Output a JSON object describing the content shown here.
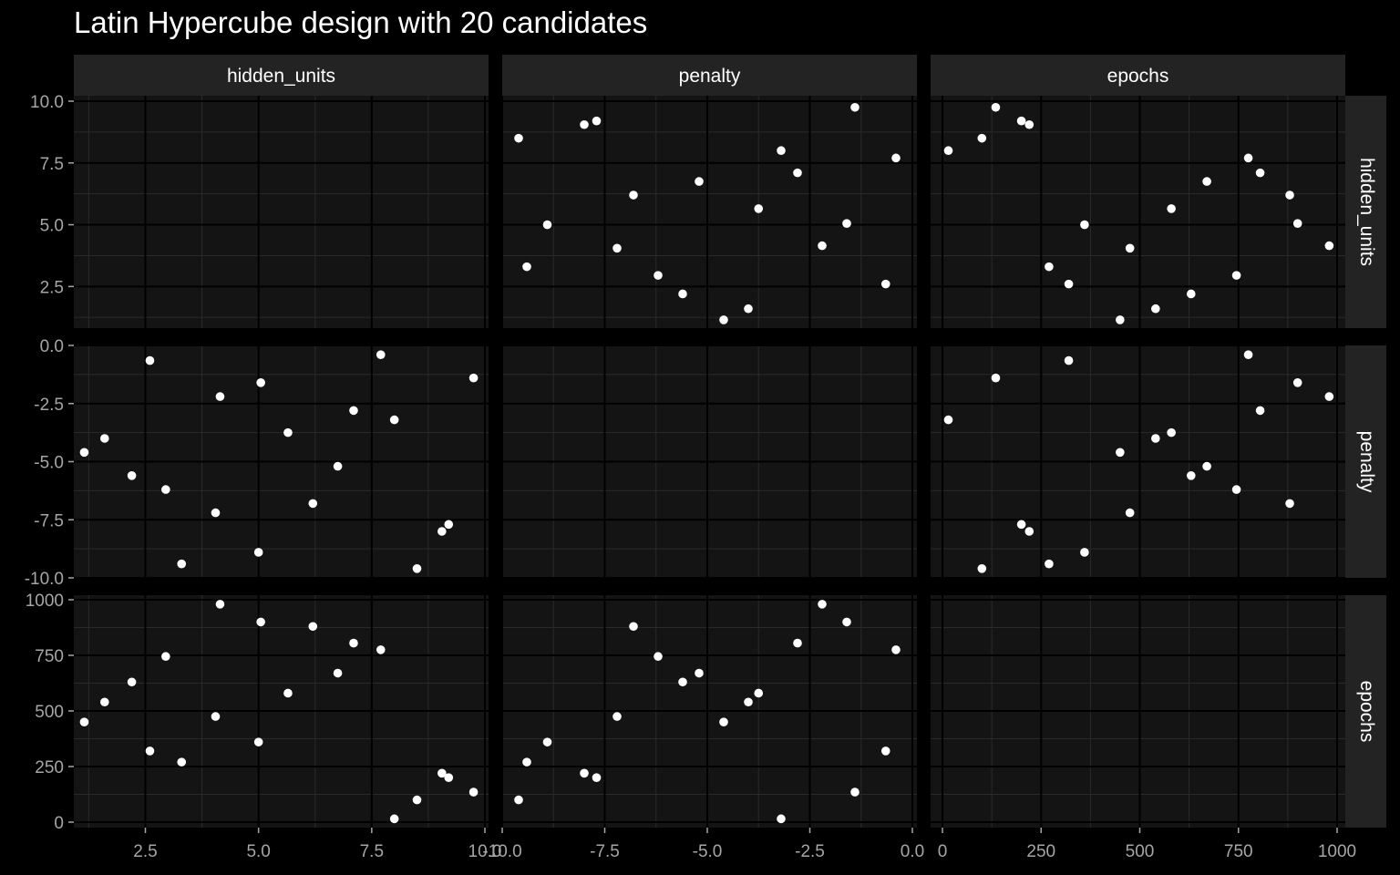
{
  "chart_data": {
    "type": "scatter",
    "title": "Latin Hypercube design with 20 candidates",
    "layout": "scatterplot-matrix",
    "variables": [
      "hidden_units",
      "penalty",
      "epochs"
    ],
    "axes": {
      "hidden_units": {
        "lim": [
          1.0,
          10.0
        ],
        "ticks": [
          2.5,
          5.0,
          7.5,
          10.0
        ],
        "x_tick_labels": [
          "2.5",
          "5.0",
          "7.5",
          "10.0"
        ],
        "y_tick_labels": [
          "2.5",
          "5.0",
          "7.5",
          "10.0"
        ]
      },
      "penalty": {
        "lim": [
          -10.0,
          0.0
        ],
        "ticks": [
          -10.0,
          -7.5,
          -5.0,
          -2.5,
          0.0
        ],
        "x_tick_labels": [
          "-10.0",
          "-7.5",
          "-5.0",
          "-2.5",
          "0.0"
        ],
        "y_tick_labels": [
          "-10.0",
          "-7.5",
          "-5.0",
          "-2.5",
          "0.0"
        ]
      },
      "epochs": {
        "lim": [
          0,
          1000
        ],
        "ticks": [
          0,
          250,
          500,
          750,
          1000
        ],
        "x_tick_labels": [
          "0",
          "250",
          "500",
          "750",
          "1000"
        ],
        "y_tick_labels": [
          "0",
          "250",
          "500",
          "750",
          "1000"
        ]
      }
    },
    "points": [
      {
        "hidden_units": 8.5,
        "penalty": -9.6,
        "epochs": 100
      },
      {
        "hidden_units": 3.3,
        "penalty": -9.4,
        "epochs": 270
      },
      {
        "hidden_units": 5.0,
        "penalty": -8.9,
        "epochs": 360
      },
      {
        "hidden_units": 9.05,
        "penalty": -8.0,
        "epochs": 220
      },
      {
        "hidden_units": 9.2,
        "penalty": -7.7,
        "epochs": 200
      },
      {
        "hidden_units": 4.05,
        "penalty": -7.2,
        "epochs": 475
      },
      {
        "hidden_units": 6.2,
        "penalty": -6.8,
        "epochs": 880
      },
      {
        "hidden_units": 2.95,
        "penalty": -6.2,
        "epochs": 745
      },
      {
        "hidden_units": 2.2,
        "penalty": -5.6,
        "epochs": 630
      },
      {
        "hidden_units": 6.75,
        "penalty": -5.2,
        "epochs": 670
      },
      {
        "hidden_units": 1.15,
        "penalty": -4.6,
        "epochs": 450
      },
      {
        "hidden_units": 1.6,
        "penalty": -4.0,
        "epochs": 540
      },
      {
        "hidden_units": 5.65,
        "penalty": -3.75,
        "epochs": 580
      },
      {
        "hidden_units": 8.0,
        "penalty": -3.2,
        "epochs": 15
      },
      {
        "hidden_units": 7.1,
        "penalty": -2.8,
        "epochs": 805
      },
      {
        "hidden_units": 4.15,
        "penalty": -2.2,
        "epochs": 980
      },
      {
        "hidden_units": 5.05,
        "penalty": -1.6,
        "epochs": 900
      },
      {
        "hidden_units": 9.75,
        "penalty": -1.4,
        "epochs": 135
      },
      {
        "hidden_units": 2.6,
        "penalty": -0.65,
        "epochs": 320
      },
      {
        "hidden_units": 7.7,
        "penalty": -0.4,
        "epochs": 775
      }
    ],
    "grid": true,
    "colors": {
      "background": "#000000",
      "panel": "#141414",
      "strip": "#232323",
      "grid_major": "#000000",
      "grid_minor": "#2a2a2a",
      "point": "#ffffff",
      "text": "#ffffff",
      "tick_text": "#a6a6a6"
    }
  }
}
